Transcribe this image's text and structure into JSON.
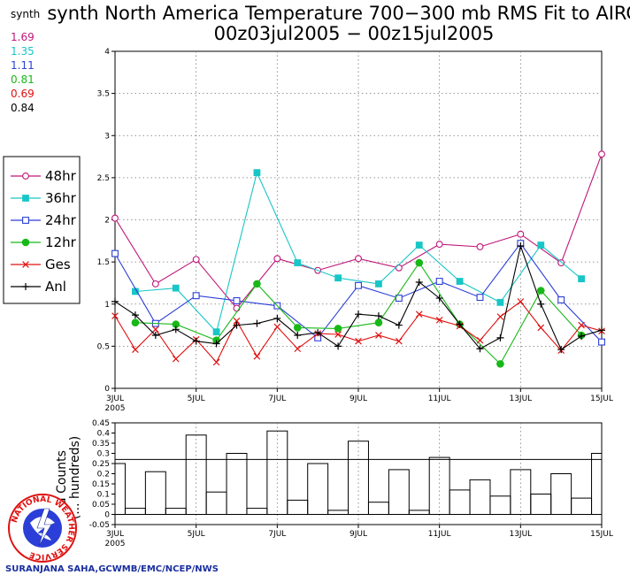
{
  "header": {
    "title_line1": "synth North America Temperature 700−300 mb RMS Fit to AIRCFT",
    "title_line2": "00z03jul2005 − 00z15jul2005"
  },
  "stats": {
    "label": "synth",
    "items": [
      {
        "value": "1.69",
        "color": "#c0167a"
      },
      {
        "value": "1.35",
        "color": "#19c6c6"
      },
      {
        "value": "1.11",
        "color": "#2b3fd8"
      },
      {
        "value": "0.81",
        "color": "#18b818"
      },
      {
        "value": "0.69",
        "color": "#e01010"
      },
      {
        "value": "0.84",
        "color": "#000000"
      }
    ]
  },
  "legend": [
    {
      "label": "48hr",
      "color": "#c0167a",
      "marker": "circle-open"
    },
    {
      "label": "36hr",
      "color": "#19c6c6",
      "marker": "square-filled"
    },
    {
      "label": "24hr",
      "color": "#2b3fd8",
      "marker": "square-open"
    },
    {
      "label": "12hr",
      "color": "#18b818",
      "marker": "circle-filled"
    },
    {
      "label": "Ges",
      "color": "#e01010",
      "marker": "x"
    },
    {
      "label": "Anl",
      "color": "#000000",
      "marker": "plus"
    }
  ],
  "credit": "SURANJANA SAHA,GCWMB/EMC/NCEP/NWS",
  "logo": {
    "text": "NATIONAL WEATHER SERVICE",
    "color": "#e01010"
  },
  "chart_data": [
    {
      "type": "line",
      "x_unit": "days since 00z03jul2005",
      "xlim": [
        0,
        12
      ],
      "ylim": [
        0,
        4
      ],
      "y_ticks": [
        "0",
        "0.5",
        "1",
        "1.5",
        "2",
        "2.5",
        "3",
        "3.5",
        "4"
      ],
      "x_tick_labels": [
        {
          "x": 0,
          "label": "3JUL",
          "sub": "2005"
        },
        {
          "x": 2,
          "label": "5JUL"
        },
        {
          "x": 4,
          "label": "7JUL"
        },
        {
          "x": 6,
          "label": "9JUL"
        },
        {
          "x": 8,
          "label": "11JUL"
        },
        {
          "x": 10,
          "label": "13JUL"
        },
        {
          "x": 12,
          "label": "15JUL"
        }
      ],
      "grid": true,
      "series": [
        {
          "name": "48hr",
          "color": "#c0167a",
          "marker": "circle-open",
          "x": [
            0,
            1,
            2,
            3,
            4,
            5,
            6,
            7,
            8,
            9,
            10,
            11,
            12
          ],
          "y": [
            2.02,
            1.24,
            1.53,
            0.95,
            1.54,
            1.4,
            1.54,
            1.43,
            1.71,
            1.68,
            1.83,
            1.49,
            2.78
          ]
        },
        {
          "name": "36hr",
          "color": "#19c6c6",
          "marker": "square-filled",
          "x": [
            0.5,
            1.5,
            2.5,
            3.5,
            4.5,
            5.5,
            6.5,
            7.5,
            8.5,
            9.5,
            10.5,
            11.5
          ],
          "y": [
            1.15,
            1.19,
            0.67,
            2.56,
            1.49,
            1.31,
            1.24,
            1.7,
            1.27,
            1.02,
            1.7,
            1.3
          ]
        },
        {
          "name": "24hr",
          "color": "#2b3fd8",
          "marker": "square-open",
          "x": [
            0,
            1,
            2,
            3,
            4,
            5,
            6,
            7,
            8,
            9,
            10,
            11,
            12
          ],
          "y": [
            1.6,
            0.77,
            1.1,
            1.04,
            0.98,
            0.6,
            1.22,
            1.07,
            1.27,
            1.08,
            1.72,
            1.05,
            0.55
          ]
        },
        {
          "name": "12hr",
          "color": "#18b818",
          "marker": "circle-filled",
          "x": [
            0.5,
            1.5,
            2.5,
            3.5,
            4.5,
            5.5,
            6.5,
            7.5,
            8.5,
            9.5,
            10.5,
            11.5
          ],
          "y": [
            0.78,
            0.76,
            0.57,
            1.24,
            0.72,
            0.71,
            0.78,
            1.49,
            0.76,
            0.29,
            1.16,
            0.63
          ]
        },
        {
          "name": "Ges",
          "color": "#e01010",
          "marker": "x",
          "x": [
            0,
            0.5,
            1,
            1.5,
            2,
            2.5,
            3,
            3.5,
            4,
            4.5,
            5,
            5.5,
            6,
            6.5,
            7,
            7.5,
            8,
            8.5,
            9,
            9.5,
            10,
            10.5,
            11,
            11.5,
            12
          ],
          "y": [
            0.86,
            0.46,
            0.7,
            0.35,
            0.58,
            0.31,
            0.8,
            0.38,
            0.73,
            0.47,
            0.65,
            0.64,
            0.56,
            0.63,
            0.56,
            0.88,
            0.81,
            0.74,
            0.57,
            0.85,
            1.03,
            0.72,
            0.45,
            0.75,
            0.68
          ]
        },
        {
          "name": "Anl",
          "color": "#000000",
          "marker": "plus",
          "x": [
            0,
            0.5,
            1,
            1.5,
            2,
            2.5,
            3,
            3.5,
            4,
            4.5,
            5,
            5.5,
            6,
            6.5,
            7,
            7.5,
            8,
            8.5,
            9,
            9.5,
            10,
            10.5,
            11,
            11.5,
            12
          ],
          "y": [
            1.03,
            0.87,
            0.63,
            0.7,
            0.56,
            0.53,
            0.75,
            0.77,
            0.83,
            0.63,
            0.66,
            0.5,
            0.88,
            0.86,
            0.75,
            1.26,
            1.07,
            0.76,
            0.47,
            0.6,
            1.69,
            1.0,
            0.46,
            0.62,
            0.69
          ]
        }
      ]
    },
    {
      "type": "bar",
      "x_unit": "days since 00z03jul2005",
      "xlim": [
        0,
        12
      ],
      "ylim": [
        -0.05,
        0.45
      ],
      "ylabel": "Counts (hundreds)",
      "ylabel_visible_text": "a Counts\n(... hundreds)",
      "reference_line": 0.27,
      "y_ticks": [
        "-0.05",
        "0",
        "0.05",
        "0.1",
        "0.15",
        "0.2",
        "0.25",
        "0.3",
        "0.35",
        "0.4",
        "0.45"
      ],
      "x_tick_labels": [
        {
          "x": 0,
          "label": "3JUL",
          "sub": "2005"
        },
        {
          "x": 2,
          "label": "5JUL"
        },
        {
          "x": 4,
          "label": "7JUL"
        },
        {
          "x": 6,
          "label": "9JUL"
        },
        {
          "x": 8,
          "label": "11JUL"
        },
        {
          "x": 10,
          "label": "13JUL"
        },
        {
          "x": 12,
          "label": "15JUL"
        }
      ],
      "bar_width": 0.5,
      "x": [
        0,
        0.5,
        1,
        1.5,
        2,
        2.5,
        3,
        3.5,
        4,
        4.5,
        5,
        5.5,
        6,
        6.5,
        7,
        7.5,
        8,
        8.5,
        9,
        9.5,
        10,
        10.5,
        11,
        11.5,
        12
      ],
      "values": [
        0.25,
        0.03,
        0.21,
        0.03,
        0.39,
        0.11,
        0.3,
        0.03,
        0.41,
        0.07,
        0.25,
        0.02,
        0.36,
        0.06,
        0.22,
        0.02,
        0.28,
        0.12,
        0.17,
        0.09,
        0.22,
        0.1,
        0.2,
        0.08,
        0.3
      ]
    }
  ]
}
